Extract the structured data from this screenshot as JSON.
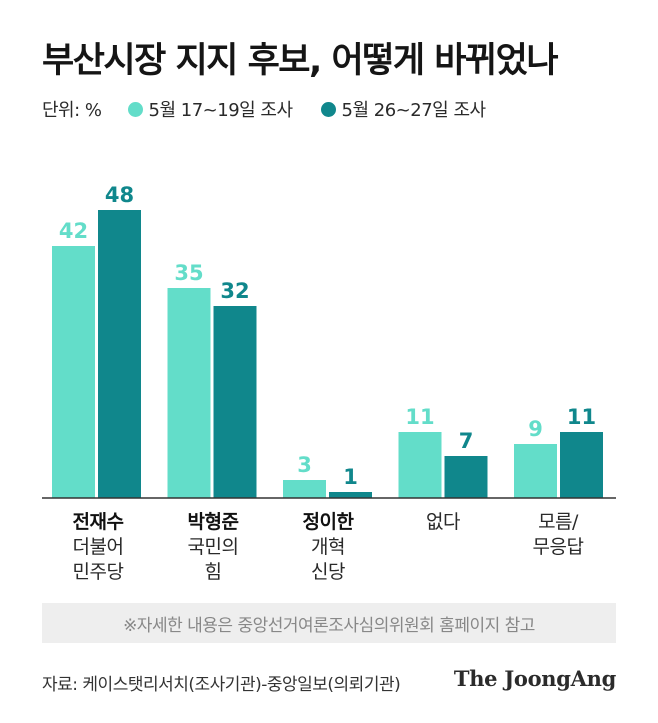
{
  "title": "부산시장 지지 후보, 어떻게 바뀌었나",
  "legend": {
    "unit": "단위: %",
    "series1": "5월 17~19일 조사",
    "series2": "5월 26~27일 조사"
  },
  "colors": {
    "series1": "#63ddc9",
    "series2": "#10878c",
    "axis": "#333333"
  },
  "chart_data": {
    "type": "bar",
    "categories": [
      "전재수 더불어 민주당",
      "박형준 국민의 힘",
      "정이한 개혁 신당",
      "없다",
      "모름/ 무응답"
    ],
    "series": [
      {
        "name": "5월 17~19일 조사",
        "values": [
          42,
          35,
          3,
          11,
          9
        ]
      },
      {
        "name": "5월 26~27일 조사",
        "values": [
          48,
          32,
          1,
          7,
          11
        ]
      }
    ],
    "ylim": [
      0,
      50
    ],
    "grid": false,
    "legend_position": "top-left"
  },
  "categories": [
    {
      "name": "전재수",
      "sub": "더불어\n민주당"
    },
    {
      "name": "박형준",
      "sub": "국민의\n힘"
    },
    {
      "name": "정이한",
      "sub": "개혁\n신당"
    },
    {
      "name": "",
      "sub": "없다"
    },
    {
      "name": "",
      "sub": "모름/\n무응답"
    }
  ],
  "note": "※자세한 내용은 중앙선거여론조사심의위원회 홈페이지 참고",
  "source": "자료: 케이스탯리서치(조사기관)-중앙일보(의뢰기관)",
  "logo": "The JoongAng"
}
